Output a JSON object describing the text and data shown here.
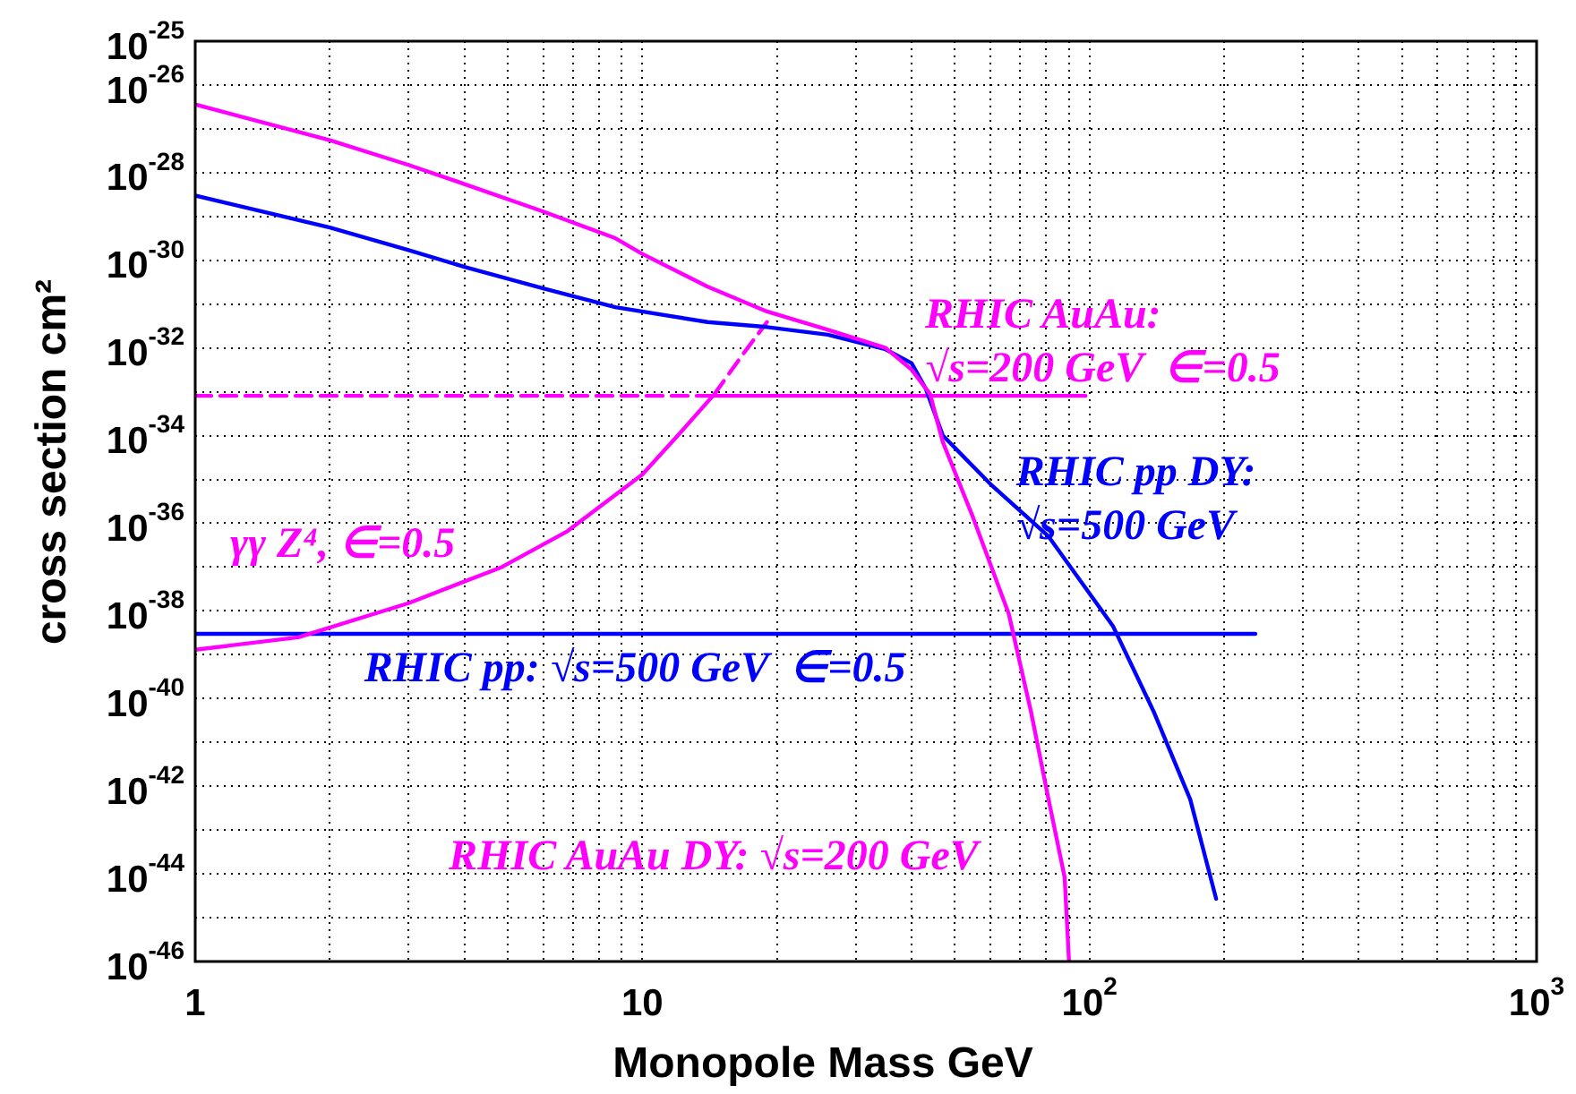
{
  "chart_data": {
    "type": "line",
    "xlabel": "Monopole Mass GeV",
    "ylabel": "cross section cm²",
    "log": "xy",
    "grid": true,
    "marker": "none",
    "xlim": [
      1,
      1000
    ],
    "ylim": [
      1e-46,
      1e-25
    ],
    "xticks": [
      {
        "value": 1,
        "label": "1"
      },
      {
        "value": 2,
        "label": null
      },
      {
        "value": 3,
        "label": null
      },
      {
        "value": 4,
        "label": null
      },
      {
        "value": 5,
        "label": null
      },
      {
        "value": 6,
        "label": null
      },
      {
        "value": 7,
        "label": null
      },
      {
        "value": 8,
        "label": null
      },
      {
        "value": 9,
        "label": null
      },
      {
        "value": 10,
        "label": "10"
      },
      {
        "value": 20,
        "label": null
      },
      {
        "value": 30,
        "label": null
      },
      {
        "value": 40,
        "label": null
      },
      {
        "value": 50,
        "label": null
      },
      {
        "value": 60,
        "label": null
      },
      {
        "value": 70,
        "label": null
      },
      {
        "value": 80,
        "label": null
      },
      {
        "value": 90,
        "label": null
      },
      {
        "value": 100,
        "label": "10$^{2}$"
      },
      {
        "value": 200,
        "label": null
      },
      {
        "value": 300,
        "label": null
      },
      {
        "value": 400,
        "label": null
      },
      {
        "value": 500,
        "label": null
      },
      {
        "value": 600,
        "label": null
      },
      {
        "value": 700,
        "label": null
      },
      {
        "value": 800,
        "label": null
      },
      {
        "value": 900,
        "label": null
      },
      {
        "value": 1000,
        "label": "10$^{3}$"
      }
    ],
    "yticks": [
      {
        "value": 1e-46,
        "label": "10$^{-46}$"
      },
      {
        "value": 1e-45,
        "label": null
      },
      {
        "value": 1e-44,
        "label": "10$^{-44}$"
      },
      {
        "value": 1e-43,
        "label": null
      },
      {
        "value": 1e-42,
        "label": "10$^{-42}$"
      },
      {
        "value": 1e-41,
        "label": null
      },
      {
        "value": 1e-40,
        "label": "10$^{-40}$"
      },
      {
        "value": 1e-39,
        "label": null
      },
      {
        "value": 1e-38,
        "label": "10$^{-38}$"
      },
      {
        "value": 1e-37,
        "label": null
      },
      {
        "value": 1e-36,
        "label": "10$^{-36}$"
      },
      {
        "value": 1e-35,
        "label": null
      },
      {
        "value": 1e-34,
        "label": "10$^{-34}$"
      },
      {
        "value": 1e-33,
        "label": null
      },
      {
        "value": 1e-32,
        "label": "10$^{-32}$"
      },
      {
        "value": 1e-31,
        "label": null
      },
      {
        "value": 1e-30,
        "label": "10$^{-30}$"
      },
      {
        "value": 1e-29,
        "label": null
      },
      {
        "value": 1e-28,
        "label": "10$^{-28}$"
      },
      {
        "value": 1e-27,
        "label": null
      },
      {
        "value": 1e-26,
        "label": "10$^{-26}$"
      },
      {
        "value": 1e-25,
        "label": "10$^{-25}$"
      }
    ],
    "series": [
      {
        "type": "line",
        "name": "RHIC AuAu DY: √s=200 GeV",
        "color": "#ff00ff",
        "x": [
          1,
          2,
          3,
          4,
          6,
          8.7,
          10,
          14,
          19,
          26,
          35,
          40,
          44,
          47,
          55,
          66,
          74,
          81,
          88,
          90
        ],
        "values": [
          3.6e-27,
          5.5e-28,
          1.5e-28,
          5.5e-29,
          1.3e-29,
          3.2e-30,
          1.4e-30,
          2.5e-31,
          6.8e-32,
          2.6e-32,
          1e-32,
          3.2e-33,
          8.9e-34,
          7.1e-35,
          1.3e-36,
          8.5e-39,
          5e-41,
          5e-43,
          8.3e-45,
          1e-46
        ]
      },
      {
        "type": "line",
        "name": "RHIC pp DY:\n√s=500 GeV",
        "color": "#0000ff",
        "x": [
          1,
          2,
          3,
          4,
          6,
          8.7,
          14,
          19,
          26,
          35,
          40,
          43,
          47,
          60,
          81,
          113,
          139,
          168,
          192
        ],
        "values": [
          3e-29,
          5.6e-30,
          1.7e-30,
          7.1e-31,
          2.3e-31,
          8.5e-32,
          3.9e-32,
          3e-32,
          2e-32,
          9.3e-33,
          4.5e-33,
          1.2e-33,
          1e-34,
          7.9e-36,
          5e-37,
          4.4e-39,
          5.2e-41,
          5e-43,
          2.7e-45
        ]
      },
      {
        "type": "line",
        "name": "γγ Z⁴, ∈=0.5",
        "color": "#ff00ff",
        "x": [
          1,
          1.7,
          3,
          4.85,
          6.8,
          10,
          12,
          14.5
        ],
        "values": [
          1.3e-39,
          2.5e-39,
          1.5e-38,
          1e-37,
          6.6e-37,
          1.3e-35,
          1e-34,
          8.9e-34
        ]
      },
      {
        "type": "line",
        "color": "#ff00ff",
        "line_style": "dashed",
        "x": [
          14.5,
          16.9,
          19
        ],
        "values": [
          8.9e-34,
          7.9e-33,
          3.9e-32
        ]
      },
      {
        "type": "line",
        "color": "#ff00ff",
        "line_style": "dashed",
        "x": [
          1,
          14.5
        ],
        "values": [
          8.1e-34,
          8.1e-34
        ]
      },
      {
        "type": "line",
        "name": "RHIC AuAu:\n√s=200 GeV  ∈=0.5",
        "color": "#ff00ff",
        "x": [
          14.5,
          98
        ],
        "values": [
          8.1e-34,
          8.1e-34
        ]
      },
      {
        "type": "line",
        "name": "RHIC pp: √s=500 GeV  ∈=0.5",
        "color": "#0000ff",
        "x": [
          1,
          235
        ],
        "values": [
          3e-39,
          3e-39
        ]
      }
    ]
  }
}
